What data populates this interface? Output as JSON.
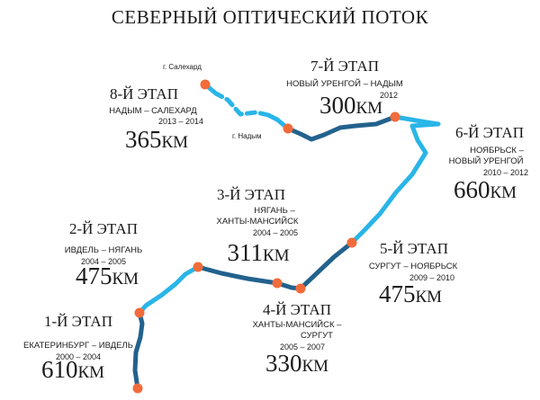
{
  "title": "СЕВЕРНЫЙ ОПТИЧЕСКИЙ ПОТОК",
  "colors": {
    "dark_line": "#22628d",
    "light_line": "#29b5e8",
    "node": "#f26b3a",
    "text": "#1a1a1a"
  },
  "cities": {
    "salekhard": "г. Салехард",
    "nadym": "г. Надым"
  },
  "stages": [
    {
      "name": "1-Й ЭТАП",
      "route": [
        "ЕКАТЕРИНБУРГ – ИВДЕЛЬ"
      ],
      "years": "2000 – 2004",
      "km": "610",
      "unit": "КМ"
    },
    {
      "name": "2-Й ЭТАП",
      "route": [
        "ИВДЕЛЬ – НЯГАНЬ"
      ],
      "years": "2004 – 2005",
      "km": "475",
      "unit": "КМ"
    },
    {
      "name": "3-Й ЭТАП",
      "route": [
        "НЯГАНЬ –",
        "ХАНТЫ-МАНСИЙСК"
      ],
      "years": "2004 – 2005",
      "km": "311",
      "unit": "КМ"
    },
    {
      "name": "4-Й ЭТАП",
      "route": [
        "ХАНТЫ-МАНСИЙСК –",
        "СУРГУТ"
      ],
      "years": "2005 – 2007",
      "km": "330",
      "unit": "КМ"
    },
    {
      "name": "5-Й ЭТАП",
      "route": [
        "СУРГУТ – НОЯБРЬСК"
      ],
      "years": "2009 – 2010",
      "km": "475",
      "unit": "КМ"
    },
    {
      "name": "6-Й ЭТАП",
      "route": [
        "НОЯБРЬСК –",
        "НОВЫЙ УРЕНГОЙ"
      ],
      "years": "2010 – 2012",
      "km": "660",
      "unit": "КМ"
    },
    {
      "name": "7-Й ЭТАП",
      "route": [
        "НОВЫЙ УРЕНГОЙ – НАДЫМ"
      ],
      "years": "2012",
      "km": "300",
      "unit": "КМ"
    },
    {
      "name": "8-Й ЭТАП",
      "route": [
        "НАДЫМ – САЛЕХАРД"
      ],
      "years": "2013 – 2014",
      "km": "365",
      "unit": "КМ"
    }
  ]
}
